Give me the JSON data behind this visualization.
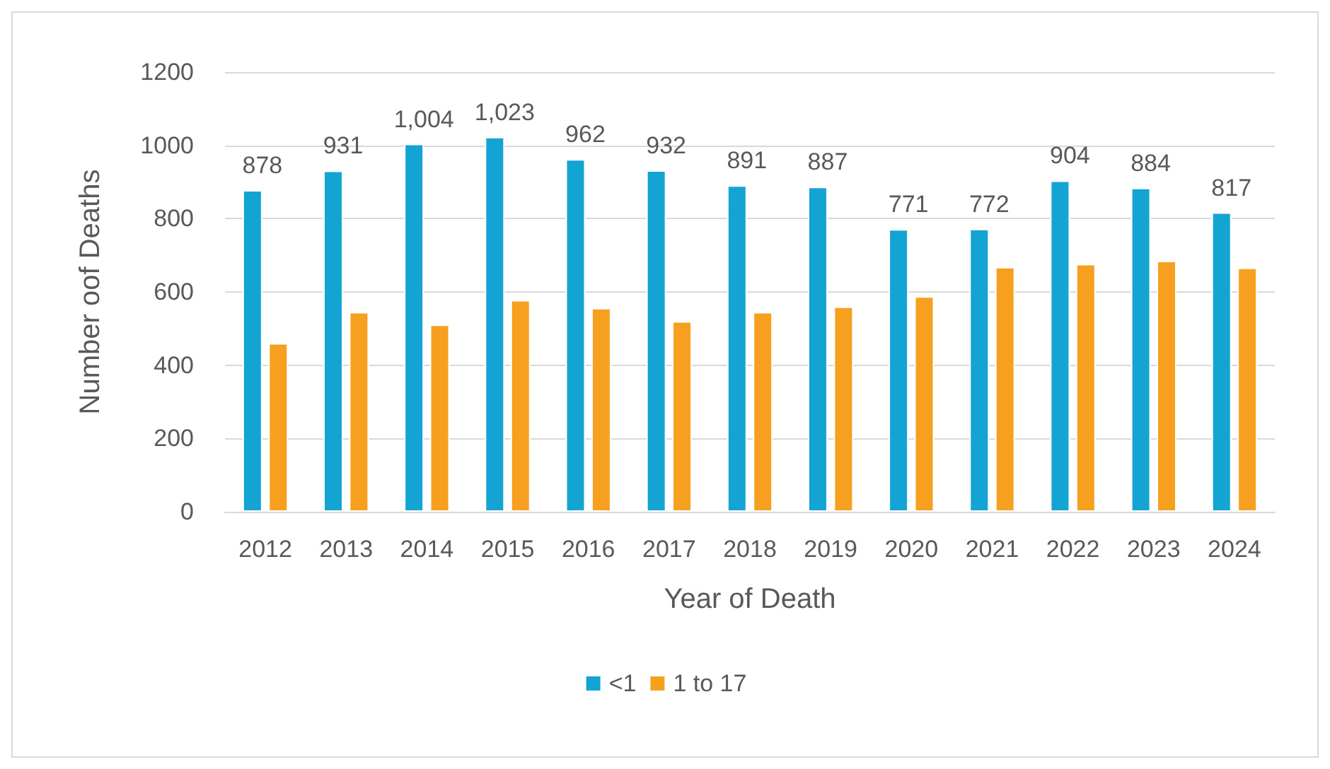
{
  "chart_data": {
    "type": "bar",
    "xlabel": "Year of Death",
    "ylabel": "Number oof Deaths",
    "categories": [
      "2012",
      "2013",
      "2014",
      "2015",
      "2016",
      "2017",
      "2018",
      "2019",
      "2020",
      "2021",
      "2022",
      "2023",
      "2024"
    ],
    "series": [
      {
        "name": "<1",
        "color": "#13a4d4",
        "values": [
          878,
          931,
          1004,
          1023,
          962,
          932,
          891,
          887,
          771,
          772,
          904,
          884,
          817
        ],
        "value_labels": [
          "878",
          "931",
          "1,004",
          "1,023",
          "962",
          "932",
          "891",
          "887",
          "771",
          "772",
          "904",
          "884",
          "817"
        ]
      },
      {
        "name": "1 to 17",
        "color": "#f7a020",
        "values": [
          460,
          545,
          511,
          578,
          556,
          520,
          545,
          560,
          588,
          668,
          676,
          685,
          666
        ]
      }
    ],
    "ylim": [
      0,
      1200
    ],
    "yticks": [
      0,
      200,
      400,
      600,
      800,
      1000,
      1200
    ],
    "grid": "y",
    "legend": "bottom"
  }
}
